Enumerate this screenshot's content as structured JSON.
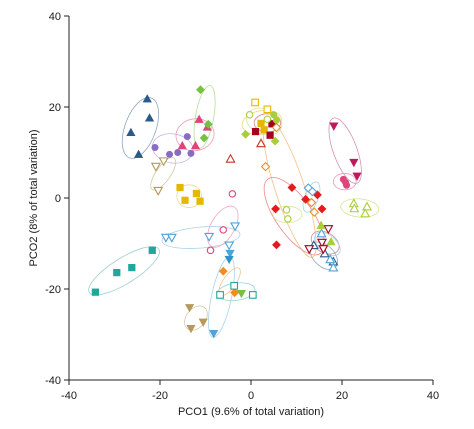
{
  "chart_data": {
    "type": "scatter",
    "xlabel": "PCO1 (9.6% of total variation)",
    "ylabel": "PCO2 (8% of total variation)",
    "xlim": [
      -40,
      40
    ],
    "ylim": [
      -40,
      40
    ],
    "xticks": [
      -40,
      -20,
      0,
      20,
      40
    ],
    "yticks": [
      -40,
      -20,
      0,
      20,
      40
    ],
    "xtick_labels": [
      "-40",
      "-20",
      "0",
      "20",
      "40"
    ],
    "ytick_labels": [
      "-40",
      "-20",
      "0",
      "20",
      "40"
    ],
    "grid": false,
    "legend": "none",
    "series": [
      {
        "marker": "square",
        "filled": true,
        "color": "#1fa79b",
        "x": [
          -34.2,
          -29.5,
          -26.2,
          -21.7
        ],
        "y": [
          -20.7,
          -16.4,
          -15.3,
          -11.5
        ]
      },
      {
        "marker": "triangle-up",
        "filled": true,
        "color": "#2b5a8a",
        "x": [
          -26.4,
          -24.7,
          -22.8,
          -22.3
        ],
        "y": [
          14.4,
          9.6,
          21.8,
          17.6
        ]
      },
      {
        "marker": "circle",
        "filled": true,
        "color": "#8a6bc4",
        "x": [
          -21.1,
          -17.9,
          -16.1,
          -14.0,
          -13.2
        ],
        "y": [
          11.1,
          9.6,
          10.0,
          13.5,
          9.8
        ]
      },
      {
        "marker": "triangle-down",
        "filled": false,
        "color": "#b59a5c",
        "x": [
          -20.9,
          -20.4,
          -19.2
        ],
        "y": [
          6.9,
          1.6,
          8.1
        ]
      },
      {
        "marker": "triangle-up",
        "filled": true,
        "color": "#e0457a",
        "x": [
          -15.1,
          -12.2,
          -11.4,
          -9.6
        ],
        "y": [
          11.5,
          11.5,
          17.3,
          15.6
        ]
      },
      {
        "marker": "square",
        "filled": true,
        "color": "#e5b800",
        "x": [
          -15.6,
          -14.5,
          -12.0,
          -11.2
        ],
        "y": [
          2.3,
          -0.5,
          1.0,
          -0.7
        ]
      },
      {
        "marker": "diamond",
        "filled": true,
        "color": "#76c043",
        "x": [
          -11.1,
          -9.4,
          -10.3
        ],
        "y": [
          23.8,
          16.2,
          13.2
        ]
      },
      {
        "marker": "triangle-down",
        "filled": false,
        "color": "#4ea3d9",
        "x": [
          -18.7,
          -17.4,
          -9.2,
          -4.8,
          -3.5
        ],
        "y": [
          -8.7,
          -8.7,
          -8.5,
          -10.4,
          -6.2
        ]
      },
      {
        "marker": "circle",
        "filled": false,
        "color": "#e0457a",
        "x": [
          -8.9,
          -6.1,
          -4.1
        ],
        "y": [
          -11.5,
          -7.0,
          0.9
        ]
      },
      {
        "marker": "triangle-up",
        "filled": false,
        "color": "#c0392b",
        "x": [
          -4.5,
          2.2
        ],
        "y": [
          8.6,
          12.0
        ]
      },
      {
        "marker": "triangle-down",
        "filled": true,
        "color": "#b59a5c",
        "x": [
          -13.5,
          -10.5,
          -13.2
        ],
        "y": [
          -24.1,
          -27.3,
          -28.7
        ]
      },
      {
        "marker": "triangle-down",
        "filled": true,
        "color": "#4ea3d9",
        "x": [
          -8.2,
          -4.6
        ],
        "y": [
          -29.8,
          -12.2
        ]
      },
      {
        "marker": "diamond",
        "filled": true,
        "color": "#f28c1e",
        "x": [
          -6.1,
          -3.6
        ],
        "y": [
          -16.1,
          -20.8
        ]
      },
      {
        "marker": "triangle-down",
        "filled": true,
        "color": "#2f93c8",
        "x": [
          -4.8
        ],
        "y": [
          -13.5
        ]
      },
      {
        "marker": "square",
        "filled": false,
        "color": "#1fa79b",
        "x": [
          -6.8,
          -3.7,
          0.4
        ],
        "y": [
          -21.3,
          -19.3,
          -21.3
        ]
      },
      {
        "marker": "triangle-down",
        "filled": true,
        "color": "#76c043",
        "x": [
          -2.1
        ],
        "y": [
          -21.0
        ]
      },
      {
        "marker": "square",
        "filled": false,
        "color": "#e5b800",
        "x": [
          0.9,
          3.6
        ],
        "y": [
          21.0,
          19.5
        ]
      },
      {
        "marker": "square",
        "filled": true,
        "color": "#e5b800",
        "x": [
          2.2,
          2.9
        ],
        "y": [
          16.4,
          15.0
        ]
      },
      {
        "marker": "square",
        "filled": true,
        "color": "#a5001e",
        "x": [
          1.0,
          4.2,
          4.6
        ],
        "y": [
          14.6,
          13.8,
          16.3
        ]
      },
      {
        "marker": "circle",
        "filled": true,
        "color": "#a9cf38",
        "x": [
          5.6,
          5.0
        ],
        "y": [
          17.1,
          18.3
        ]
      },
      {
        "marker": "circle",
        "filled": false,
        "color": "#a9cf38",
        "x": [
          -0.3,
          3.6
        ],
        "y": [
          18.3,
          17.3
        ]
      },
      {
        "marker": "diamond",
        "filled": true,
        "color": "#a9cf38",
        "x": [
          -1.2,
          5.3
        ],
        "y": [
          14.0,
          12.5
        ]
      },
      {
        "marker": "diamond",
        "filled": false,
        "color": "#f28c1e",
        "x": [
          5.6,
          3.2
        ],
        "y": [
          15.5,
          6.9
        ]
      },
      {
        "marker": "diamond",
        "filled": true,
        "color": "#e41a1c",
        "x": [
          5.4,
          9.0,
          12.0,
          14.6,
          15.6,
          5.6
        ],
        "y": [
          -2.4,
          2.3,
          -0.3,
          0.7,
          -2.4,
          -10.3
        ]
      },
      {
        "marker": "circle",
        "filled": false,
        "color": "#a9cf38",
        "x": [
          7.8,
          8.1
        ],
        "y": [
          -2.6,
          -4.6
        ]
      },
      {
        "marker": "diamond",
        "filled": false,
        "color": "#4ea3d9",
        "x": [
          12.6,
          13.5
        ],
        "y": [
          2.2,
          1.4
        ]
      },
      {
        "marker": "diamond",
        "filled": false,
        "color": "#f28c1e",
        "x": [
          13.3,
          13.9
        ],
        "y": [
          -1.0,
          -3.1
        ]
      },
      {
        "marker": "triangle-up",
        "filled": false,
        "color": "#2b5a8a",
        "x": [
          13.8,
          16.2,
          18.1
        ],
        "y": [
          -10.4,
          -12.2,
          -14.0
        ]
      },
      {
        "marker": "triangle-up",
        "filled": false,
        "color": "#4ea3d9",
        "x": [
          15.5,
          17.4,
          18.1
        ],
        "y": [
          -7.8,
          -13.5,
          -15.3
        ]
      },
      {
        "marker": "triangle-down",
        "filled": false,
        "color": "#a5001e",
        "x": [
          12.8,
          15.6,
          15.9,
          17.0
        ],
        "y": [
          -11.2,
          -9.8,
          -11.2,
          -6.8
        ]
      },
      {
        "marker": "triangle-up",
        "filled": true,
        "color": "#a9cf38",
        "x": [
          15.4,
          17.6
        ],
        "y": [
          -6.0,
          -9.6
        ]
      },
      {
        "marker": "triangle-down",
        "filled": true,
        "color": "#c2185b",
        "x": [
          18.2,
          22.6,
          23.3
        ],
        "y": [
          15.8,
          7.8,
          4.8
        ]
      },
      {
        "marker": "circle",
        "filled": true,
        "color": "#e0457a",
        "x": [
          20.3,
          20.8,
          21.0
        ],
        "y": [
          4.1,
          3.4,
          2.8
        ]
      },
      {
        "marker": "triangle-up",
        "filled": false,
        "color": "#a9cf38",
        "x": [
          22.6,
          22.7,
          25.5,
          25.1
        ],
        "y": [
          -1.2,
          -2.3,
          -1.9,
          -3.4
        ]
      }
    ]
  },
  "ellipses": [
    {
      "cx": -27.9,
      "cy": -16.0,
      "rx": 9.0,
      "ry": 2.8,
      "angle": 32,
      "color": "#9ecfd0"
    },
    {
      "cx": -24.3,
      "cy": 15.4,
      "rx": 7.0,
      "ry": 3.4,
      "angle": 70,
      "color": "#8fa8bf"
    },
    {
      "cx": -17.2,
      "cy": 10.9,
      "rx": 4.5,
      "ry": 3.2,
      "angle": -10,
      "color": "#c6b5e0"
    },
    {
      "cx": -19.3,
      "cy": 5.3,
      "rx": 4.2,
      "ry": 1.6,
      "angle": 55,
      "color": "#d6c9a6"
    },
    {
      "cx": -12.3,
      "cy": 13.9,
      "rx": 4.2,
      "ry": 3.5,
      "angle": 10,
      "color": "#ef9ab7"
    },
    {
      "cx": -13.6,
      "cy": 0.4,
      "rx": 2.7,
      "ry": 2.5,
      "angle": 0,
      "color": "#eed98a"
    },
    {
      "cx": -10.2,
      "cy": 17.8,
      "rx": 7.0,
      "ry": 2.0,
      "angle": 80,
      "color": "#b8dc9e"
    },
    {
      "cx": -11.0,
      "cy": -8.7,
      "rx": 8.6,
      "ry": 2.3,
      "angle": 5,
      "color": "#a9d2ec"
    },
    {
      "cx": -6.2,
      "cy": -6.3,
      "rx": 5.0,
      "ry": 2.6,
      "angle": 60,
      "color": "#f3a7c0"
    },
    {
      "cx": -12.1,
      "cy": -26.4,
      "rx": 3.0,
      "ry": 2.1,
      "angle": 50,
      "color": "#d6c9a6"
    },
    {
      "cx": -6.5,
      "cy": -21.8,
      "rx": 9.0,
      "ry": 2.2,
      "angle": 78,
      "color": "#a9d2ec"
    },
    {
      "cx": -4.7,
      "cy": -18.4,
      "rx": 3.6,
      "ry": 1.4,
      "angle": 55,
      "color": "#f7c08a"
    },
    {
      "cx": -3.3,
      "cy": -20.6,
      "rx": 4.2,
      "ry": 1.9,
      "angle": 8,
      "color": "#9ecfd0"
    },
    {
      "cx": 2.4,
      "cy": 16.6,
      "rx": 4.4,
      "ry": 2.6,
      "angle": 10,
      "color": "#eed98a"
    },
    {
      "cx": 3.6,
      "cy": 16.5,
      "rx": 2.9,
      "ry": 2.0,
      "angle": 0,
      "color": "#d68a8a"
    },
    {
      "cx": 2.9,
      "cy": 16.8,
      "rx": 4.0,
      "ry": 2.8,
      "angle": -20,
      "color": "#d3e69a"
    },
    {
      "cx": 8.5,
      "cy": 2.2,
      "rx": 16.0,
      "ry": 3.2,
      "angle": -72,
      "color": "#f7c08a"
    },
    {
      "cx": 9.5,
      "cy": -4.0,
      "rx": 10.0,
      "ry": 4.0,
      "angle": -55,
      "color": "#f08a8a"
    },
    {
      "cx": 8.0,
      "cy": -3.6,
      "rx": 3.2,
      "ry": 1.8,
      "angle": 0,
      "color": "#d3e69a"
    },
    {
      "cx": 13.3,
      "cy": 0.2,
      "rx": 3.5,
      "ry": 1.5,
      "angle": 70,
      "color": "#a9d2ec"
    },
    {
      "cx": 16.0,
      "cy": -12.7,
      "rx": 3.6,
      "ry": 2.3,
      "angle": -45,
      "color": "#8fa8bf"
    },
    {
      "cx": 16.3,
      "cy": -9.8,
      "rx": 3.3,
      "ry": 2.2,
      "angle": -30,
      "color": "#d68a8a"
    },
    {
      "cx": 16.8,
      "cy": -10.1,
      "rx": 3.3,
      "ry": 1.9,
      "angle": -40,
      "color": "#a9d2ec"
    },
    {
      "cx": 20.7,
      "cy": 10.4,
      "rx": 7.6,
      "ry": 2.6,
      "angle": -70,
      "color": "#d493b2"
    },
    {
      "cx": 20.6,
      "cy": 3.6,
      "rx": 2.5,
      "ry": 1.8,
      "angle": 0,
      "color": "#ef9ab7"
    },
    {
      "cx": 23.9,
      "cy": -2.2,
      "rx": 4.2,
      "ry": 2.0,
      "angle": -5,
      "color": "#d3e69a"
    }
  ]
}
